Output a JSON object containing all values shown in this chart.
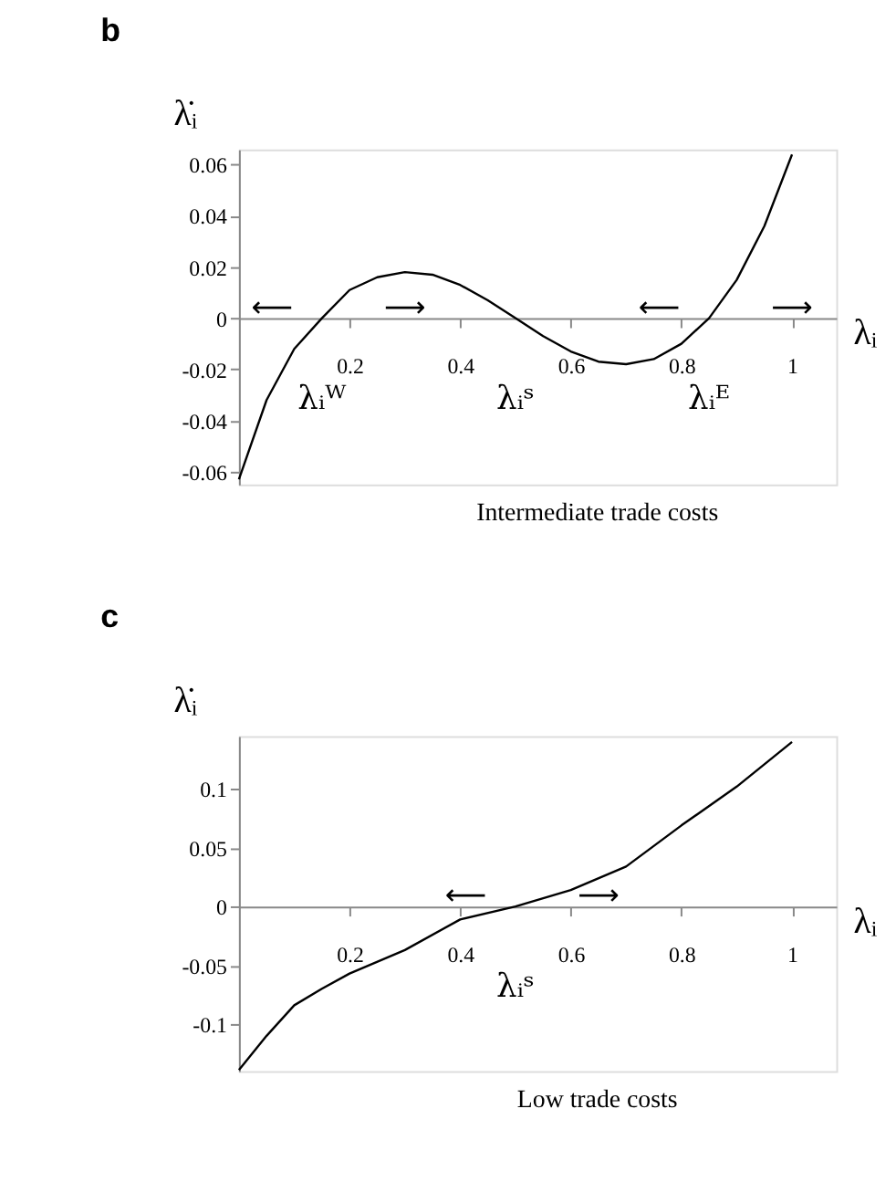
{
  "chart_data": [
    {
      "type": "line",
      "title": "b",
      "xlabel": "λᵢ",
      "ylabel": "λ̇ᵢ",
      "x": [
        0,
        0.05,
        0.1,
        0.15,
        0.2,
        0.25,
        0.3,
        0.35,
        0.4,
        0.45,
        0.5,
        0.55,
        0.6,
        0.65,
        0.7,
        0.75,
        0.8,
        0.85,
        0.9,
        0.95,
        1.0
      ],
      "values": [
        -0.063,
        -0.032,
        -0.012,
        0,
        0.011,
        0.016,
        0.018,
        0.017,
        0.013,
        0.007,
        0,
        -0.007,
        -0.013,
        -0.017,
        -0.018,
        -0.016,
        -0.01,
        0,
        0.015,
        0.036,
        0.064
      ],
      "xlim": [
        0,
        1.08
      ],
      "ylim": [
        -0.065,
        0.066
      ],
      "xticks": [
        0.2,
        0.4,
        0.6,
        0.8,
        1
      ],
      "yticks": [
        -0.06,
        -0.04,
        -0.02,
        0,
        0.02,
        0.04,
        0.06
      ],
      "annotations": [
        {
          "text": "λᵢᵂ",
          "x": 0.15,
          "y": 0
        },
        {
          "text": "λᵢˢ",
          "x": 0.5,
          "y": 0
        },
        {
          "text": "λᵢᴱ",
          "x": 0.85,
          "y": 0
        },
        "⟵",
        "⟶",
        "⟵",
        "⟶",
        "Intermediate trade costs"
      ]
    },
    {
      "type": "line",
      "title": "c",
      "xlabel": "λᵢ",
      "ylabel": "λ̇ᵢ",
      "x": [
        0,
        0.05,
        0.1,
        0.15,
        0.2,
        0.3,
        0.4,
        0.5,
        0.6,
        0.7,
        0.8,
        0.9,
        1.0
      ],
      "values": [
        -0.139,
        -0.11,
        -0.084,
        -0.07,
        -0.057,
        -0.037,
        -0.011,
        0,
        0.014,
        0.034,
        0.069,
        0.102,
        0.14
      ],
      "xlim": [
        0,
        1.08
      ],
      "ylim": [
        -0.14,
        0.145
      ],
      "xticks": [
        0.2,
        0.4,
        0.6,
        0.8,
        1
      ],
      "yticks": [
        -0.1,
        -0.05,
        0,
        0.05,
        0.1
      ],
      "annotations": [
        {
          "text": "λᵢˢ",
          "x": 0.5,
          "y": 0
        },
        "⟵",
        "⟶",
        "Low trade costs"
      ]
    }
  ]
}
